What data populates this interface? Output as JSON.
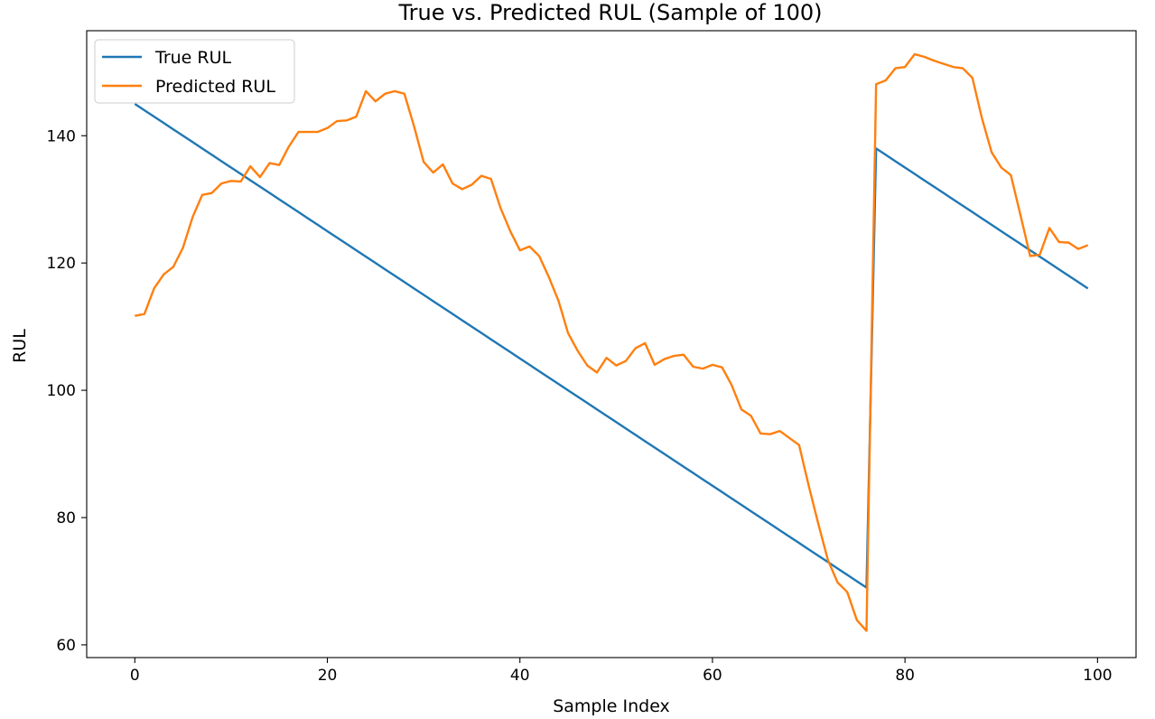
{
  "chart_data": {
    "type": "line",
    "title": "True vs. Predicted RUL (Sample of 100)",
    "xlabel": "Sample Index",
    "ylabel": "RUL",
    "xlim": [
      -5,
      104
    ],
    "ylim": [
      58,
      156.5
    ],
    "xticks": [
      0,
      20,
      40,
      60,
      80,
      100
    ],
    "yticks": [
      60,
      80,
      100,
      120,
      140
    ],
    "grid": false,
    "legend": "top-left",
    "x": [
      0,
      1,
      2,
      3,
      4,
      5,
      6,
      7,
      8,
      9,
      10,
      11,
      12,
      13,
      14,
      15,
      16,
      17,
      18,
      19,
      20,
      21,
      22,
      23,
      24,
      25,
      26,
      27,
      28,
      29,
      30,
      31,
      32,
      33,
      34,
      35,
      36,
      37,
      38,
      39,
      40,
      41,
      42,
      43,
      44,
      45,
      46,
      47,
      48,
      49,
      50,
      51,
      52,
      53,
      54,
      55,
      56,
      57,
      58,
      59,
      60,
      61,
      62,
      63,
      64,
      65,
      66,
      67,
      68,
      69,
      70,
      71,
      72,
      73,
      74,
      75,
      76,
      77,
      78,
      79,
      80,
      81,
      82,
      83,
      84,
      85,
      86,
      87,
      88,
      89,
      90,
      91,
      92,
      93,
      94,
      95,
      96,
      97,
      98,
      99
    ],
    "series": [
      {
        "name": "True RUL",
        "color": "#1f77b4",
        "values": [
          145,
          144,
          143,
          142,
          141,
          140,
          139,
          138,
          137,
          136,
          135,
          134,
          133,
          132,
          131,
          130,
          129,
          128,
          127,
          126,
          125,
          124,
          123,
          122,
          121,
          120,
          119,
          118,
          117,
          116,
          115,
          114,
          113,
          112,
          111,
          110,
          109,
          108,
          107,
          106,
          105,
          104,
          103,
          102,
          101,
          100,
          99,
          98,
          97,
          96,
          95,
          94,
          93,
          92,
          91,
          90,
          89,
          88,
          87,
          86,
          85,
          84,
          83,
          82,
          81,
          80,
          79,
          78,
          77,
          76,
          75,
          74,
          73,
          72,
          71,
          70,
          69,
          138,
          137,
          136,
          135,
          134,
          133,
          132,
          131,
          130,
          129,
          128,
          127,
          126,
          125,
          124,
          123,
          122,
          121,
          120,
          119,
          118,
          117,
          116
        ]
      },
      {
        "name": "Predicted RUL",
        "color": "#ff7f0e",
        "values": [
          111.7,
          112.0,
          116.0,
          118.2,
          119.4,
          122.4,
          127.2,
          130.7,
          131.0,
          132.5,
          132.9,
          132.8,
          135.2,
          133.5,
          135.7,
          135.4,
          138.3,
          140.6,
          140.6,
          140.6,
          141.2,
          142.3,
          142.4,
          143.0,
          147.0,
          145.4,
          146.6,
          147.0,
          146.6,
          141.5,
          135.9,
          134.2,
          135.5,
          132.5,
          131.6,
          132.3,
          133.7,
          133.2,
          128.6,
          125.0,
          122.0,
          122.6,
          121.1,
          117.8,
          114.1,
          109.0,
          106.2,
          103.9,
          102.8,
          105.1,
          103.9,
          104.6,
          106.6,
          107.4,
          104.0,
          104.9,
          105.4,
          105.6,
          103.7,
          103.4,
          104.0,
          103.6,
          100.8,
          97.0,
          96.0,
          93.2,
          93.1,
          93.6,
          92.5,
          91.4,
          85.0,
          79.0,
          73.3,
          69.8,
          68.3,
          63.9,
          62.2,
          148.1,
          148.7,
          150.6,
          150.8,
          152.8,
          152.4,
          151.8,
          151.3,
          150.8,
          150.6,
          149.1,
          142.7,
          137.4,
          135.0,
          133.8,
          127.5,
          121.1,
          121.3,
          125.5,
          123.3,
          123.2,
          122.2,
          122.8
        ]
      }
    ]
  }
}
